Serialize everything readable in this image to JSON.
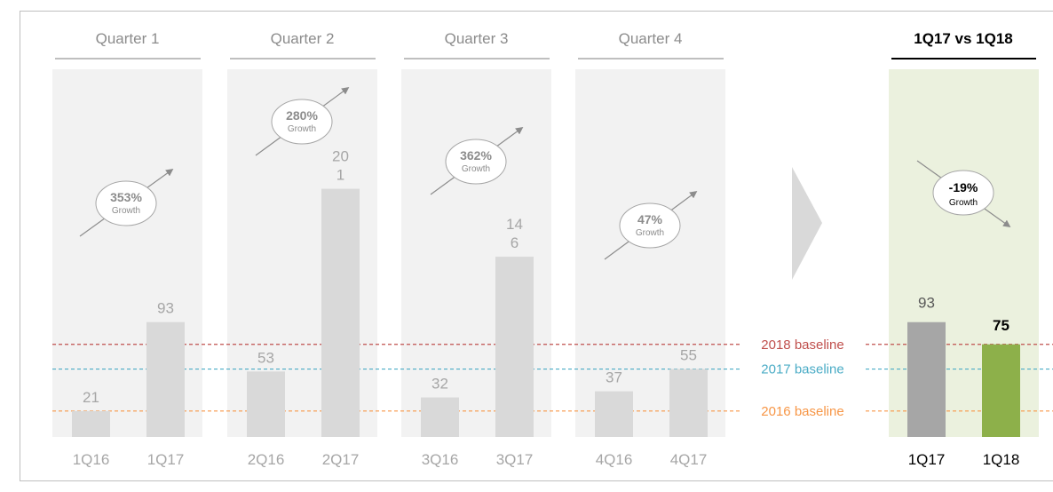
{
  "chart_data": {
    "type": "bar",
    "panels": [
      {
        "title": "Quarter 1",
        "categories": [
          "1Q16",
          "1Q17"
        ],
        "values": [
          21,
          93
        ],
        "value_labels": [
          "21",
          "93"
        ],
        "growth": "353%",
        "growth_label": "Growth"
      },
      {
        "title": "Quarter 2",
        "categories": [
          "2Q16",
          "2Q17"
        ],
        "values": [
          53,
          201
        ],
        "value_labels": [
          "53",
          "20\n1"
        ],
        "growth": "280%",
        "growth_label": "Growth"
      },
      {
        "title": "Quarter 3",
        "categories": [
          "3Q16",
          "3Q17"
        ],
        "values": [
          32,
          146
        ],
        "value_labels": [
          "32",
          "14\n6"
        ],
        "growth": "362%",
        "growth_label": "Growth"
      },
      {
        "title": "Quarter 4",
        "categories": [
          "4Q16",
          "4Q17"
        ],
        "values": [
          37,
          55
        ],
        "value_labels": [
          "37",
          "55"
        ],
        "growth": "47%",
        "growth_label": "Growth"
      }
    ],
    "comparison": {
      "title": "1Q17 vs 1Q18",
      "categories": [
        "1Q17",
        "1Q18"
      ],
      "values": [
        93,
        75
      ],
      "value_labels": [
        "93",
        "75"
      ],
      "colors": [
        "#a6a6a6",
        "#8db04a"
      ],
      "growth": "-19%",
      "growth_label": "Growth"
    },
    "baselines": [
      {
        "label": "2018 baseline",
        "value": 75,
        "color": "#c0504d"
      },
      {
        "label": "2017 baseline",
        "value": 55,
        "color": "#4bacc6"
      },
      {
        "label": "2016 baseline",
        "value": 21,
        "color": "#f79646"
      }
    ]
  }
}
